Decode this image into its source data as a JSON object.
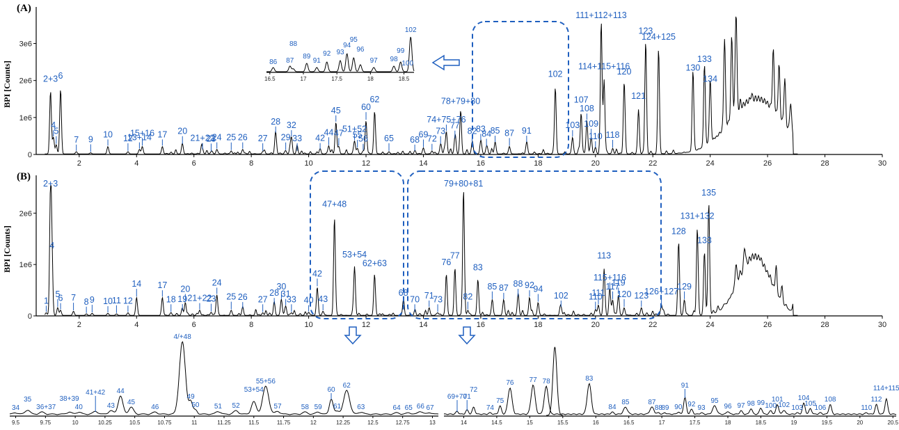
{
  "chart_data": [
    {
      "panel": "(A)",
      "type": "line",
      "ylabel": "BPI [Counts]",
      "xlim": [
        0.5,
        30
      ],
      "xticks": [
        "2",
        "4",
        "6",
        "8",
        "10",
        "12",
        "14",
        "16",
        "18",
        "20",
        "22",
        "24",
        "26",
        "28",
        "30"
      ],
      "yticks": [
        "0",
        "1e6",
        "2e6",
        "3e6"
      ],
      "ylim": [
        0,
        3800000
      ],
      "peaks": [
        {
          "x": 1.0,
          "y": 1700000,
          "label": "2+3"
        },
        {
          "x": 1.35,
          "y": 1750000,
          "label": "6"
        },
        {
          "x": 1.1,
          "y": 450000,
          "label": "4"
        },
        {
          "x": 1.2,
          "y": 250000,
          "label": "5"
        },
        {
          "x": 1.9,
          "y": 60000,
          "label": "7"
        },
        {
          "x": 2.4,
          "y": 30000,
          "label": "9"
        },
        {
          "x": 3.0,
          "y": 200000,
          "label": "10"
        },
        {
          "x": 3.7,
          "y": 60000,
          "label": "12"
        },
        {
          "x": 4.1,
          "y": 120000,
          "label": "13+14"
        },
        {
          "x": 4.2,
          "y": 200000,
          "label": "15+16"
        },
        {
          "x": 4.9,
          "y": 200000,
          "label": "17"
        },
        {
          "x": 5.6,
          "y": 250000,
          "label": "20"
        },
        {
          "x": 6.3,
          "y": 100000,
          "label": "21+22"
        },
        {
          "x": 6.6,
          "y": 50000,
          "label": "23"
        },
        {
          "x": 6.8,
          "y": 120000,
          "label": "24"
        },
        {
          "x": 7.3,
          "y": 80000,
          "label": "25"
        },
        {
          "x": 7.7,
          "y": 120000,
          "label": "26"
        },
        {
          "x": 8.4,
          "y": 60000,
          "label": "27"
        },
        {
          "x": 8.85,
          "y": 550000,
          "label": "28"
        },
        {
          "x": 9.2,
          "y": 80000,
          "label": "29"
        },
        {
          "x": 9.4,
          "y": 450000,
          "label": "32"
        },
        {
          "x": 9.6,
          "y": 60000,
          "label": "33"
        },
        {
          "x": 10.4,
          "y": 100000,
          "label": "42"
        },
        {
          "x": 10.7,
          "y": 220000,
          "label": "44"
        },
        {
          "x": 10.95,
          "y": 850000,
          "label": "45"
        },
        {
          "x": 11.05,
          "y": 200000,
          "label": "47"
        },
        {
          "x": 11.6,
          "y": 350000,
          "label": "51+52"
        },
        {
          "x": 11.7,
          "y": 150000,
          "label": "55"
        },
        {
          "x": 11.9,
          "y": 80000,
          "label": "56"
        },
        {
          "x": 12.0,
          "y": 900000,
          "label": "60"
        },
        {
          "x": 12.3,
          "y": 1150000,
          "label": "62"
        },
        {
          "x": 12.8,
          "y": 60000,
          "label": "65"
        },
        {
          "x": 13.7,
          "y": 60000,
          "label": "68"
        },
        {
          "x": 14.0,
          "y": 160000,
          "label": "69"
        },
        {
          "x": 14.3,
          "y": 80000,
          "label": "72"
        },
        {
          "x": 14.6,
          "y": 250000,
          "label": "73"
        },
        {
          "x": 14.8,
          "y": 600000,
          "label": "74+75+76"
        },
        {
          "x": 15.1,
          "y": 400000,
          "label": "77"
        },
        {
          "x": 15.3,
          "y": 1100000,
          "label": "78+79+80"
        },
        {
          "x": 15.7,
          "y": 250000,
          "label": "82"
        },
        {
          "x": 16.0,
          "y": 350000,
          "label": "83"
        },
        {
          "x": 16.2,
          "y": 180000,
          "label": "84"
        },
        {
          "x": 16.5,
          "y": 300000,
          "label": "85"
        },
        {
          "x": 17.0,
          "y": 200000,
          "label": "87"
        },
        {
          "x": 17.6,
          "y": 300000,
          "label": "91"
        },
        {
          "x": 18.6,
          "y": 1800000,
          "label": "102"
        },
        {
          "x": 19.2,
          "y": 450000,
          "label": "103"
        },
        {
          "x": 19.5,
          "y": 1100000,
          "label": "107"
        },
        {
          "x": 19.7,
          "y": 900000,
          "label": "108"
        },
        {
          "x": 19.85,
          "y": 450000,
          "label": "109"
        },
        {
          "x": 20.2,
          "y": 3500000,
          "label": "111+112+113"
        },
        {
          "x": 20.3,
          "y": 2000000,
          "label": "114+115+116"
        },
        {
          "x": 20.0,
          "y": 150000,
          "label": "110"
        },
        {
          "x": 20.6,
          "y": 150000,
          "label": "118"
        },
        {
          "x": 21.0,
          "y": 1900000,
          "label": "120"
        },
        {
          "x": 21.5,
          "y": 1200000,
          "label": "121"
        },
        {
          "x": 21.75,
          "y": 3000000,
          "label": "123"
        },
        {
          "x": 22.2,
          "y": 2800000,
          "label": "124+125"
        },
        {
          "x": 23.4,
          "y": 2000000,
          "label": "130"
        },
        {
          "x": 23.8,
          "y": 2200000,
          "label": "133"
        },
        {
          "x": 24.0,
          "y": 1700000,
          "label": "134"
        }
      ],
      "inset": {
        "xticks": [
          "16.5",
          "17",
          "17.5",
          "18",
          "18.5"
        ],
        "labels": [
          "86",
          "87",
          "88",
          "89",
          "91",
          "92",
          "93",
          "94",
          "95",
          "96",
          "97",
          "98",
          "99",
          "100",
          "102"
        ]
      }
    },
    {
      "panel": "(B)",
      "type": "line",
      "ylabel": "BPI [Counts]",
      "xlim": [
        0.5,
        30
      ],
      "xticks": [
        "2",
        "4",
        "6",
        "8",
        "10",
        "12",
        "14",
        "16",
        "18",
        "20",
        "22",
        "24",
        "26",
        "28",
        "30"
      ],
      "yticks": [
        "0",
        "1e6",
        "2e6"
      ],
      "ylim": [
        0,
        2600000
      ],
      "peaks": [
        {
          "x": 1.0,
          "y": 2450000,
          "label": "2+3"
        },
        {
          "x": 1.05,
          "y": 1100000,
          "label": "4"
        },
        {
          "x": 0.85,
          "y": 50000,
          "label": "1"
        },
        {
          "x": 1.25,
          "y": 150000,
          "label": "5"
        },
        {
          "x": 1.35,
          "y": 100000,
          "label": "6"
        },
        {
          "x": 1.8,
          "y": 80000,
          "label": "7"
        },
        {
          "x": 2.25,
          "y": 30000,
          "label": "8"
        },
        {
          "x": 2.45,
          "y": 40000,
          "label": "9"
        },
        {
          "x": 3.0,
          "y": 40000,
          "label": "10"
        },
        {
          "x": 3.3,
          "y": 30000,
          "label": "11"
        },
        {
          "x": 3.7,
          "y": 50000,
          "label": "12"
        },
        {
          "x": 4.0,
          "y": 350000,
          "label": "14"
        },
        {
          "x": 4.9,
          "y": 350000,
          "label": "17"
        },
        {
          "x": 5.2,
          "y": 50000,
          "label": "18"
        },
        {
          "x": 5.6,
          "y": 80000,
          "label": "19"
        },
        {
          "x": 5.7,
          "y": 250000,
          "label": "20"
        },
        {
          "x": 6.2,
          "y": 100000,
          "label": "21+22"
        },
        {
          "x": 6.6,
          "y": 60000,
          "label": "23"
        },
        {
          "x": 6.8,
          "y": 400000,
          "label": "24"
        },
        {
          "x": 7.3,
          "y": 100000,
          "label": "25"
        },
        {
          "x": 7.7,
          "y": 120000,
          "label": "26"
        },
        {
          "x": 8.4,
          "y": 50000,
          "label": "27"
        },
        {
          "x": 8.8,
          "y": 200000,
          "label": "28"
        },
        {
          "x": 9.05,
          "y": 300000,
          "label": "30"
        },
        {
          "x": 9.2,
          "y": 180000,
          "label": "31"
        },
        {
          "x": 9.4,
          "y": 50000,
          "label": "33"
        },
        {
          "x": 10.0,
          "y": 60000,
          "label": "40"
        },
        {
          "x": 10.3,
          "y": 550000,
          "label": "42"
        },
        {
          "x": 10.5,
          "y": 80000,
          "label": "43"
        },
        {
          "x": 10.9,
          "y": 1900000,
          "label": "47+48"
        },
        {
          "x": 11.6,
          "y": 950000,
          "label": "53+54"
        },
        {
          "x": 12.3,
          "y": 750000,
          "label": "62+63"
        },
        {
          "x": 13.3,
          "y": 200000,
          "label": "68"
        },
        {
          "x": 13.7,
          "y": 50000,
          "label": "70"
        },
        {
          "x": 14.2,
          "y": 150000,
          "label": "71"
        },
        {
          "x": 14.5,
          "y": 50000,
          "label": "73"
        },
        {
          "x": 14.8,
          "y": 800000,
          "label": "76"
        },
        {
          "x": 15.1,
          "y": 900000,
          "label": "77"
        },
        {
          "x": 15.4,
          "y": 2450000,
          "label": "79+80+81"
        },
        {
          "x": 15.55,
          "y": 100000,
          "label": "82"
        },
        {
          "x": 15.9,
          "y": 700000,
          "label": "83"
        },
        {
          "x": 16.4,
          "y": 300000,
          "label": "85"
        },
        {
          "x": 16.8,
          "y": 300000,
          "label": "87"
        },
        {
          "x": 17.3,
          "y": 350000,
          "label": "88"
        },
        {
          "x": 17.7,
          "y": 350000,
          "label": "92"
        },
        {
          "x": 18.0,
          "y": 250000,
          "label": "94"
        },
        {
          "x": 18.8,
          "y": 150000,
          "label": "102"
        },
        {
          "x": 20.0,
          "y": 100000,
          "label": "110"
        },
        {
          "x": 20.1,
          "y": 200000,
          "label": "111"
        },
        {
          "x": 20.3,
          "y": 900000,
          "label": "113"
        },
        {
          "x": 20.5,
          "y": 500000,
          "label": "115+116"
        },
        {
          "x": 20.6,
          "y": 300000,
          "label": "117"
        },
        {
          "x": 20.8,
          "y": 400000,
          "label": "119"
        },
        {
          "x": 21.0,
          "y": 150000,
          "label": "120"
        },
        {
          "x": 21.6,
          "y": 150000,
          "label": "123"
        },
        {
          "x": 22.3,
          "y": 200000,
          "label": "126+127"
        },
        {
          "x": 22.9,
          "y": 1400000,
          "label": "128"
        },
        {
          "x": 23.1,
          "y": 300000,
          "label": "129"
        },
        {
          "x": 23.55,
          "y": 1700000,
          "label": "131+132"
        },
        {
          "x": 23.8,
          "y": 1200000,
          "label": "133"
        },
        {
          "x": 23.95,
          "y": 2150000,
          "label": "135"
        }
      ],
      "zoom_left": {
        "xticks": [
          "9.5",
          "9.75",
          "10",
          "10.25",
          "10.5",
          "10.75",
          "11",
          "11.25",
          "11.5",
          "11.75",
          "12",
          "12.25",
          "12.5",
          "12.75",
          "13"
        ],
        "labels": [
          "34",
          "35",
          "36+37",
          "38+39",
          "40",
          "41+42",
          "43",
          "44",
          "45",
          "46",
          "4/+48",
          "49",
          "50",
          "51",
          "52",
          "53+54",
          "55+56",
          "57",
          "58",
          "59",
          "60",
          "61",
          "62",
          "63",
          "64",
          "65",
          "66",
          "67"
        ]
      },
      "zoom_right": {
        "xticks": [
          "14",
          "14.5",
          "15",
          "15.5",
          "16",
          "16.5",
          "17",
          "17.5",
          "18",
          "18.5",
          "19",
          "19.5",
          "20",
          "20.5"
        ],
        "labels": [
          "69+70",
          "71",
          "72",
          "74",
          "75",
          "76",
          "77",
          "78",
          "83",
          "84",
          "85",
          "87",
          "88",
          "89",
          "90",
          "91",
          "92",
          "93",
          "95",
          "96",
          "97",
          "98",
          "99",
          "100",
          "101",
          "102",
          "103",
          "104",
          "105",
          "106",
          "108",
          "110",
          "112",
          "114+115"
        ]
      }
    }
  ]
}
